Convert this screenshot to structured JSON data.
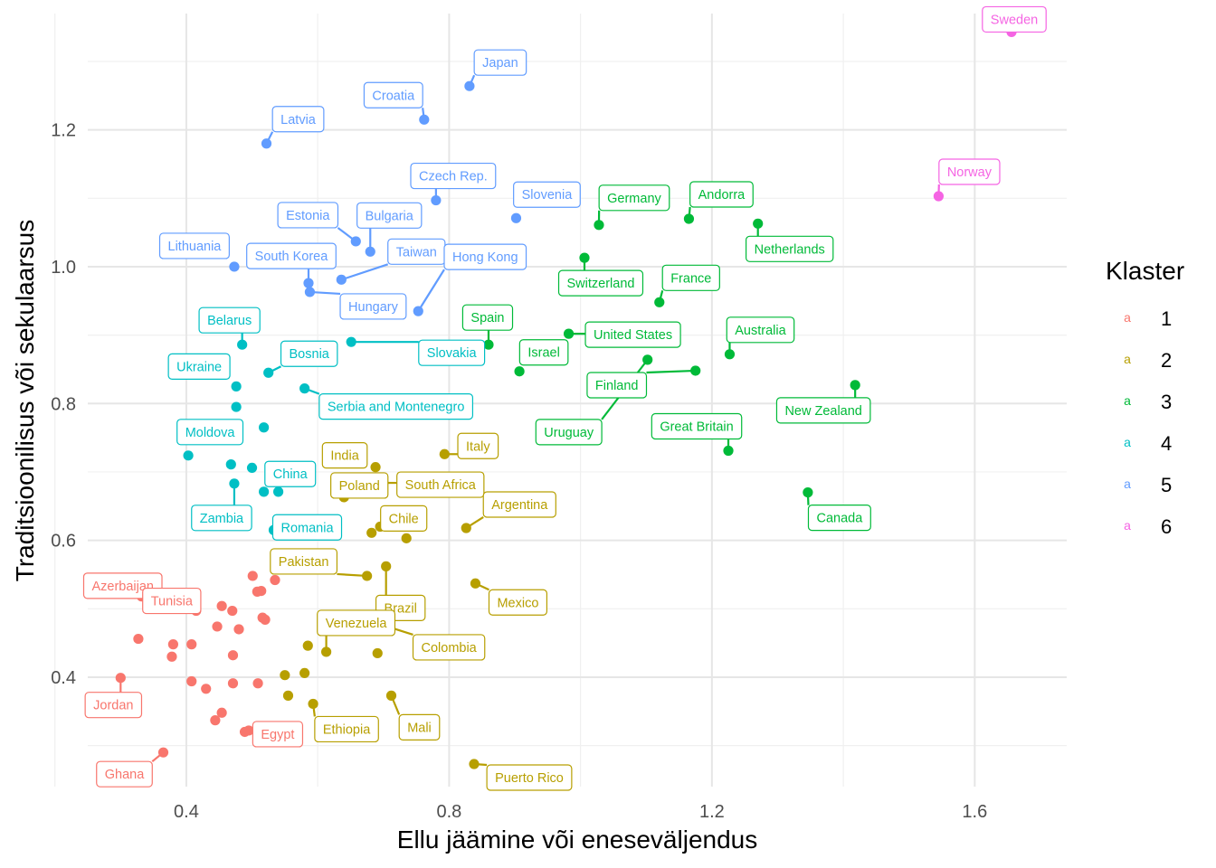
{
  "chart_data": {
    "type": "scatter",
    "xlabel": "Ellu jäämine või eneseväljendus",
    "ylabel": "Traditsioonilisus või sekulaarsus",
    "x_ticks": [
      "0.4",
      "0.8",
      "1.2",
      "1.6"
    ],
    "y_ticks": [
      "0.4",
      "0.6",
      "0.8",
      "1.0",
      "1.2"
    ],
    "xlim": [
      0.25,
      1.74
    ],
    "ylim": [
      0.24,
      1.37
    ],
    "grid": true,
    "legend": {
      "title": "Klaster",
      "placement": "right",
      "key_glyph": "a",
      "entries": [
        {
          "label": "1",
          "color": "#F8766D"
        },
        {
          "label": "2",
          "color": "#B79F00"
        },
        {
          "label": "3",
          "color": "#00BA38"
        },
        {
          "label": "4",
          "color": "#00BFC4"
        },
        {
          "label": "5",
          "color": "#619CFF"
        },
        {
          "label": "6",
          "color": "#F564E3"
        }
      ]
    },
    "series": [
      {
        "cluster": "1",
        "color": "#F8766D",
        "points": [
          {
            "x": 0.313,
            "y": 0.527,
            "label": "Azerbaijan"
          },
          {
            "x": 0.3,
            "y": 0.399,
            "label": "Jordan"
          },
          {
            "x": 0.365,
            "y": 0.29,
            "label": "Ghana"
          },
          {
            "x": 0.495,
            "y": 0.322,
            "label": "Egypt"
          },
          {
            "x": 0.415,
            "y": 0.497,
            "label": "Tunisia"
          },
          {
            "x": 0.332,
            "y": 0.518
          },
          {
            "x": 0.327,
            "y": 0.456
          },
          {
            "x": 0.38,
            "y": 0.448
          },
          {
            "x": 0.378,
            "y": 0.43
          },
          {
            "x": 0.408,
            "y": 0.448
          },
          {
            "x": 0.408,
            "y": 0.394
          },
          {
            "x": 0.43,
            "y": 0.383
          },
          {
            "x": 0.447,
            "y": 0.474
          },
          {
            "x": 0.454,
            "y": 0.504
          },
          {
            "x": 0.47,
            "y": 0.497
          },
          {
            "x": 0.48,
            "y": 0.47
          },
          {
            "x": 0.471,
            "y": 0.432
          },
          {
            "x": 0.471,
            "y": 0.391
          },
          {
            "x": 0.454,
            "y": 0.348
          },
          {
            "x": 0.444,
            "y": 0.337
          },
          {
            "x": 0.489,
            "y": 0.32
          },
          {
            "x": 0.501,
            "y": 0.548
          },
          {
            "x": 0.508,
            "y": 0.525
          },
          {
            "x": 0.514,
            "y": 0.526
          },
          {
            "x": 0.516,
            "y": 0.487
          },
          {
            "x": 0.52,
            "y": 0.484
          },
          {
            "x": 0.535,
            "y": 0.542
          },
          {
            "x": 0.509,
            "y": 0.391
          }
        ]
      },
      {
        "cluster": "2",
        "color": "#B79F00",
        "points": [
          {
            "x": 0.793,
            "y": 0.726,
            "label": "Italy"
          },
          {
            "x": 0.688,
            "y": 0.707,
            "label": "India"
          },
          {
            "x": 0.7,
            "y": 0.684,
            "label": "South Africa"
          },
          {
            "x": 0.64,
            "y": 0.663,
            "label": "Poland"
          },
          {
            "x": 0.826,
            "y": 0.618,
            "label": "Argentina"
          },
          {
            "x": 0.735,
            "y": 0.603,
            "label": "Chile"
          },
          {
            "x": 0.704,
            "y": 0.562,
            "label": "Brazil"
          },
          {
            "x": 0.84,
            "y": 0.537,
            "label": "Mexico"
          },
          {
            "x": 0.675,
            "y": 0.548,
            "label": "Pakistan"
          },
          {
            "x": 0.706,
            "y": 0.474,
            "label": "Colombia"
          },
          {
            "x": 0.613,
            "y": 0.437,
            "label": "Venezuela"
          },
          {
            "x": 0.712,
            "y": 0.373,
            "label": "Mali"
          },
          {
            "x": 0.593,
            "y": 0.361,
            "label": "Ethiopia"
          },
          {
            "x": 0.838,
            "y": 0.273,
            "label": "Puerto Rico"
          },
          {
            "x": 0.695,
            "y": 0.62
          },
          {
            "x": 0.682,
            "y": 0.611
          },
          {
            "x": 0.585,
            "y": 0.446
          },
          {
            "x": 0.691,
            "y": 0.435
          },
          {
            "x": 0.58,
            "y": 0.406
          },
          {
            "x": 0.55,
            "y": 0.403
          },
          {
            "x": 0.555,
            "y": 0.373
          }
        ]
      },
      {
        "cluster": "3",
        "color": "#00BA38",
        "points": [
          {
            "x": 1.165,
            "y": 1.07,
            "label": "Andorra"
          },
          {
            "x": 1.028,
            "y": 1.061,
            "label": "Germany"
          },
          {
            "x": 1.27,
            "y": 1.063,
            "label": "Netherlands"
          },
          {
            "x": 1.006,
            "y": 1.013,
            "label": "Switzerland"
          },
          {
            "x": 1.12,
            "y": 0.948,
            "label": "France"
          },
          {
            "x": 0.982,
            "y": 0.902,
            "label": "United States"
          },
          {
            "x": 0.86,
            "y": 0.886,
            "label": "Spain"
          },
          {
            "x": 1.227,
            "y": 0.872,
            "label": "Australia"
          },
          {
            "x": 0.907,
            "y": 0.847,
            "label": "Israel"
          },
          {
            "x": 1.175,
            "y": 0.848,
            "label": "Finland"
          },
          {
            "x": 1.418,
            "y": 0.827,
            "label": "New Zealand"
          },
          {
            "x": 1.225,
            "y": 0.731,
            "label": "Great Britain"
          },
          {
            "x": 1.346,
            "y": 0.67,
            "label": "Canada"
          },
          {
            "x": 1.102,
            "y": 0.864,
            "label": "Uruguay"
          }
        ]
      },
      {
        "cluster": "4",
        "color": "#00BFC4",
        "points": [
          {
            "x": 0.485,
            "y": 0.886,
            "label": "Belarus"
          },
          {
            "x": 0.476,
            "y": 0.825,
            "label": "Ukraine"
          },
          {
            "x": 0.525,
            "y": 0.845,
            "label": "Bosnia"
          },
          {
            "x": 0.651,
            "y": 0.89,
            "label": "Slovakia"
          },
          {
            "x": 0.58,
            "y": 0.822,
            "label": "Serbia and Montenegro"
          },
          {
            "x": 0.403,
            "y": 0.724,
            "label": "Moldova"
          },
          {
            "x": 0.565,
            "y": 0.697,
            "label": "China"
          },
          {
            "x": 0.473,
            "y": 0.683,
            "label": "Zambia"
          },
          {
            "x": 0.533,
            "y": 0.615,
            "label": "Romania"
          },
          {
            "x": 0.476,
            "y": 0.795
          },
          {
            "x": 0.518,
            "y": 0.765
          },
          {
            "x": 0.468,
            "y": 0.711
          },
          {
            "x": 0.5,
            "y": 0.706
          },
          {
            "x": 0.518,
            "y": 0.671
          },
          {
            "x": 0.54,
            "y": 0.671
          }
        ]
      },
      {
        "cluster": "5",
        "color": "#619CFF",
        "points": [
          {
            "x": 0.831,
            "y": 1.264,
            "label": "Japan"
          },
          {
            "x": 0.762,
            "y": 1.215,
            "label": "Croatia"
          },
          {
            "x": 0.522,
            "y": 1.18,
            "label": "Latvia"
          },
          {
            "x": 0.78,
            "y": 1.097,
            "label": "Czech Rep."
          },
          {
            "x": 0.902,
            "y": 1.071,
            "label": "Slovenia"
          },
          {
            "x": 0.658,
            "y": 1.037,
            "label": "Estonia"
          },
          {
            "x": 0.68,
            "y": 1.022,
            "label": "Bulgaria"
          },
          {
            "x": 0.473,
            "y": 1.0,
            "label": "Lithuania"
          },
          {
            "x": 0.586,
            "y": 0.976,
            "label": "South Korea"
          },
          {
            "x": 0.636,
            "y": 0.981,
            "label": "Taiwan"
          },
          {
            "x": 0.753,
            "y": 0.935,
            "label": "Hong Kong"
          },
          {
            "x": 0.588,
            "y": 0.963,
            "label": "Hungary"
          }
        ]
      },
      {
        "cluster": "6",
        "color": "#F564E3",
        "points": [
          {
            "x": 1.656,
            "y": 1.343,
            "label": "Sweden"
          },
          {
            "x": 1.545,
            "y": 1.103,
            "label": "Norway"
          }
        ]
      }
    ]
  }
}
